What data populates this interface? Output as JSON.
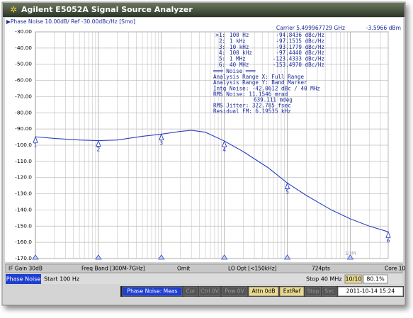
{
  "window": {
    "title": "Agilent E5052A Signal Source Analyzer"
  },
  "header": {
    "trace_info": "▶Phase Noise 10.00dB/ Ref -30.00dBc/Hz [Smo]",
    "carrier": "Carrier 5.499967729 GHz",
    "power": "-3.5966 dBm"
  },
  "noise_analysis": [
    "═══ Noise ═══",
    "Analysis Range X: Full Range",
    "Analysis Range Y: Band Marker",
    "Intg Noise: -42.0612 dBc / 40 MHz",
    "RMS Noise: 11.1546 mrad",
    "639.111 mdeg",
    "RMS Jitter: 322.785 fsec",
    "Residual FM: 6.19535 kHz"
  ],
  "softkeys_row": [
    "IF Gain 30dB",
    "Freq Band [300M-7GHz]",
    "Omit",
    "LO Opt [<150kHz]",
    "724pts",
    "Core 10"
  ],
  "channel_bar": {
    "measurement": "Phase Noise",
    "start": "Start 100 Hz",
    "stop": "Stop 40 MHz",
    "trace_count": "10/10",
    "progress": "80.1%"
  },
  "status_bar": [
    "Phase Noise: Meas",
    "Cor",
    "Ctrl 0V",
    "Pow 0V",
    "Attn 0dB",
    "ExtRef",
    "Stop",
    "Svc",
    "2011-10-14 15:24"
  ],
  "chart_data": {
    "type": "line",
    "log_x": true,
    "grid": true,
    "xlim": [
      100,
      40000000
    ],
    "ylim": [
      -170,
      -30
    ],
    "xgrid_decades": [
      100,
      1000,
      10000,
      100000,
      1000000,
      10000000
    ],
    "xticks": [
      {
        "value": 10000000,
        "label": "10M"
      }
    ],
    "yticks": [
      {
        "value": -30,
        "label": "-30.00"
      },
      {
        "value": -40,
        "label": "-40.00"
      },
      {
        "value": -50,
        "label": "-50.00"
      },
      {
        "value": -60,
        "label": "-60.00"
      },
      {
        "value": -70,
        "label": "-70.00"
      },
      {
        "value": -80,
        "label": "-80.00"
      },
      {
        "value": -90,
        "label": "-90.00"
      },
      {
        "value": -100,
        "label": "-100.0"
      },
      {
        "value": -110,
        "label": "-110.0"
      },
      {
        "value": -120,
        "label": "-120.0"
      },
      {
        "value": -130,
        "label": "-130.0"
      },
      {
        "value": -140,
        "label": "-140.0"
      },
      {
        "value": -150,
        "label": "-150.0"
      },
      {
        "value": -160,
        "label": "-160.0"
      },
      {
        "value": -170,
        "label": "-170.0"
      }
    ],
    "series": [
      {
        "color": "#2a3fc0",
        "x": [
          100,
          200,
          500,
          1000,
          2000,
          5000,
          10000,
          20000,
          30000,
          50000,
          100000,
          200000,
          500000,
          1000000,
          2000000,
          5000000,
          10000000,
          20000000,
          40000000
        ],
        "values": [
          -94.8,
          -95.8,
          -96.8,
          -97.2,
          -96.8,
          -94.5,
          -93.2,
          -91.5,
          -90.8,
          -92,
          -97.4,
          -104,
          -114,
          -123.4,
          -131,
          -140,
          -145.5,
          -150,
          -153.5
        ]
      }
    ],
    "markers": {
      "labels": [
        "1",
        "2",
        "3",
        "4",
        "5",
        "6"
      ],
      "list_labels": [
        ">1:",
        "2:",
        "3:",
        "4:",
        "5:",
        "6:"
      ],
      "x": [
        100,
        1000,
        10000,
        100000,
        1000000,
        40000000
      ],
      "freq_labels": [
        "100 Hz",
        "1 kHz",
        "10 kHz",
        "100 kHz",
        "1 MHz",
        "40 MHz"
      ],
      "values": [
        -94.8436,
        -97.1515,
        -93.1779,
        -97.444,
        -123.4333,
        -153.497
      ],
      "value_labels": [
        "-94.8436 dBc/Hz",
        "-97.1515 dBc/Hz",
        "-93.1779 dBc/Hz",
        "-97.4440 dBc/Hz",
        "-123.4333 dBc/Hz",
        "-153.4970 dBc/Hz"
      ]
    }
  }
}
